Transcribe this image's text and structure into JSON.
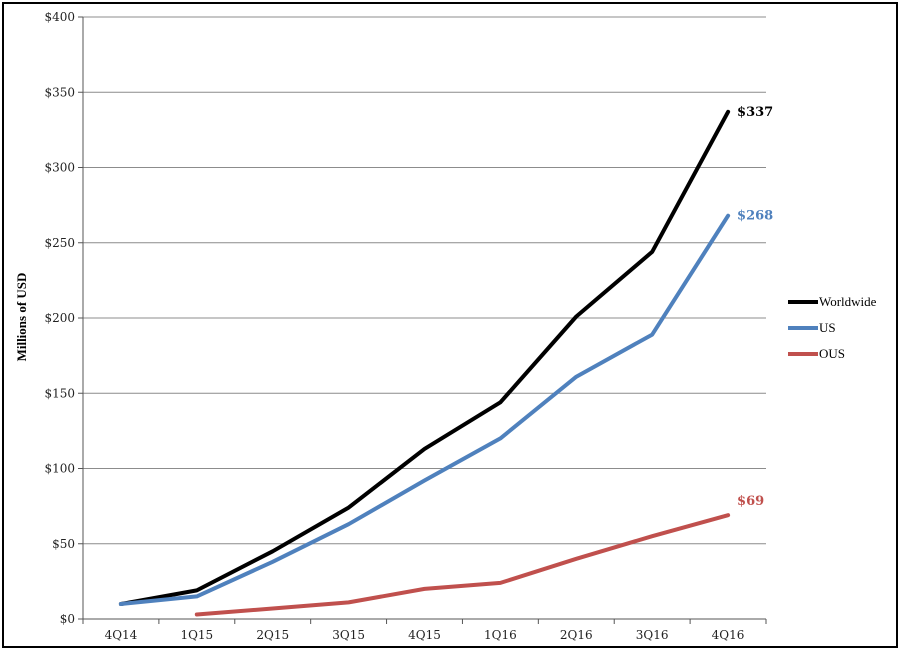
{
  "chart_data": {
    "type": "line",
    "title": "",
    "xlabel": "",
    "ylabel": "Millions of USD",
    "categories": [
      "4Q14",
      "1Q15",
      "2Q15",
      "3Q15",
      "4Q15",
      "1Q16",
      "2Q16",
      "3Q16",
      "4Q16"
    ],
    "ylim": [
      0,
      400
    ],
    "yticks": [
      0,
      50,
      100,
      150,
      200,
      250,
      300,
      350,
      400
    ],
    "ytick_labels": [
      "$0",
      "$50",
      "$100",
      "$150",
      "$200",
      "$250",
      "$300",
      "$350",
      "$400"
    ],
    "grid": "horizontal",
    "legend_position": "right",
    "series": [
      {
        "name": "Worldwide",
        "color": "#000000",
        "values": [
          10,
          19,
          45,
          74,
          113,
          144,
          201,
          244,
          337
        ],
        "end_label": "$337"
      },
      {
        "name": "US",
        "color": "#4f81bd",
        "values": [
          10,
          15,
          38,
          63,
          92,
          120,
          161,
          189,
          268
        ],
        "end_label": "$268"
      },
      {
        "name": "OUS",
        "color": "#c0504d",
        "values": [
          null,
          3,
          7,
          11,
          20,
          24,
          40,
          55,
          69
        ],
        "end_label": "$69"
      }
    ]
  }
}
